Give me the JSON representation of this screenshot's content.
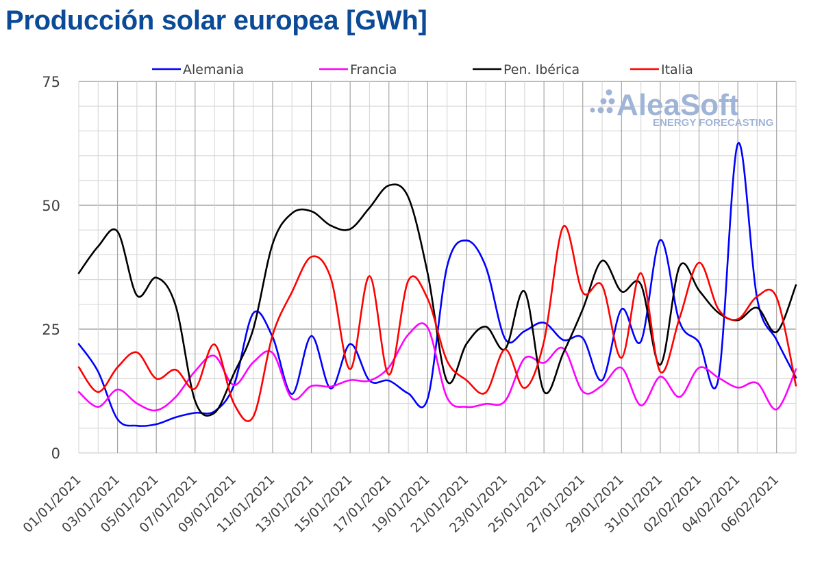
{
  "chart_data": {
    "type": "line",
    "title": "Producción solar europea [GWh]",
    "xlabel": "",
    "ylabel": "",
    "ylim": [
      0,
      75
    ],
    "yticks": [
      "0",
      "25",
      "50",
      "75"
    ],
    "grid": true,
    "legend_position": "top",
    "x": [
      "01/01/2021",
      "02/01/2021",
      "03/01/2021",
      "04/01/2021",
      "05/01/2021",
      "06/01/2021",
      "07/01/2021",
      "08/01/2021",
      "09/01/2021",
      "10/01/2021",
      "11/01/2021",
      "12/01/2021",
      "13/01/2021",
      "14/01/2021",
      "15/01/2021",
      "16/01/2021",
      "17/01/2021",
      "18/01/2021",
      "19/01/2021",
      "20/01/2021",
      "21/01/2021",
      "22/01/2021",
      "23/01/2021",
      "24/01/2021",
      "25/01/2021",
      "26/01/2021",
      "27/01/2021",
      "28/01/2021",
      "29/01/2021",
      "30/01/2021",
      "31/01/2021",
      "01/02/2021",
      "02/02/2021",
      "03/02/2021",
      "04/02/2021",
      "05/02/2021",
      "06/02/2021",
      "07/02/2021"
    ],
    "xtick_labels": [
      "01/01/2021",
      "03/01/2021",
      "05/01/2021",
      "07/01/2021",
      "09/01/2021",
      "11/01/2021",
      "13/01/2021",
      "15/01/2021",
      "17/01/2021",
      "19/01/2021",
      "21/01/2021",
      "23/01/2021",
      "25/01/2021",
      "27/01/2021",
      "29/01/2021",
      "31/01/2021",
      "02/02/2021",
      "04/02/2021",
      "06/02/2021"
    ],
    "series": [
      {
        "name": "Alemania",
        "color": "#0000ff",
        "values": [
          22,
          16.4,
          6.8,
          5.5,
          5.8,
          7.2,
          8.1,
          8.4,
          13.6,
          28.2,
          23.4,
          11.9,
          23.6,
          13,
          22,
          14.6,
          14.6,
          12,
          11,
          37.6,
          42.9,
          37.6,
          23,
          24.6,
          26.3,
          22.8,
          23.2,
          14.7,
          29,
          22.5,
          43,
          26.4,
          22.3,
          15,
          62.4,
          31.1,
          22.8,
          15.2
        ]
      },
      {
        "name": "Francia",
        "color": "#ff00ff",
        "values": [
          12.3,
          9.3,
          12.8,
          10,
          8.6,
          11.3,
          16.5,
          19.6,
          13.7,
          18.3,
          20.2,
          11,
          13.5,
          13.4,
          14.7,
          14.6,
          17.3,
          23.9,
          25.3,
          11.2,
          9.3,
          9.9,
          10.5,
          19.1,
          18.2,
          21.1,
          12.4,
          13.6,
          17.2,
          9.6,
          15.4,
          11.3,
          17.2,
          15.2,
          13.2,
          14.1,
          8.8,
          16.9
        ]
      },
      {
        "name": "Pen. Ibérica",
        "color": "#000000",
        "values": [
          36.3,
          41.7,
          44.7,
          31.8,
          35.4,
          29.7,
          10.5,
          8.1,
          16,
          25,
          42.2,
          48.4,
          48.8,
          45.9,
          45.2,
          49.5,
          54,
          51.6,
          36.2,
          14.5,
          22,
          25.5,
          21,
          32.6,
          12.4,
          20.2,
          29,
          38.8,
          32.6,
          34,
          17.8,
          37.7,
          32.8,
          28.3,
          26.8,
          29.3,
          24.4,
          33.9
        ]
      },
      {
        "name": "Italia",
        "color": "#ff0000",
        "values": [
          17.3,
          12.3,
          17.3,
          20.3,
          15,
          16.8,
          13,
          21.9,
          10,
          7.3,
          23.8,
          32.5,
          39.6,
          35.3,
          16.9,
          35.7,
          15.8,
          34.8,
          31.1,
          18.6,
          14.7,
          12.2,
          20.9,
          13.1,
          22.5,
          45.7,
          32.4,
          33.8,
          19.2,
          36.3,
          16.4,
          27.3,
          38.4,
          29,
          27,
          31.6,
          31.4,
          13.6
        ]
      }
    ]
  },
  "watermark": {
    "brand": "AleaSoft",
    "tagline": "ENERGY FORECASTING",
    "color": "#9fb4d6"
  },
  "colors": {
    "title": "#0a4a96",
    "grid_major": "#a6a6a6",
    "grid_minor": "#d9d9d9"
  }
}
